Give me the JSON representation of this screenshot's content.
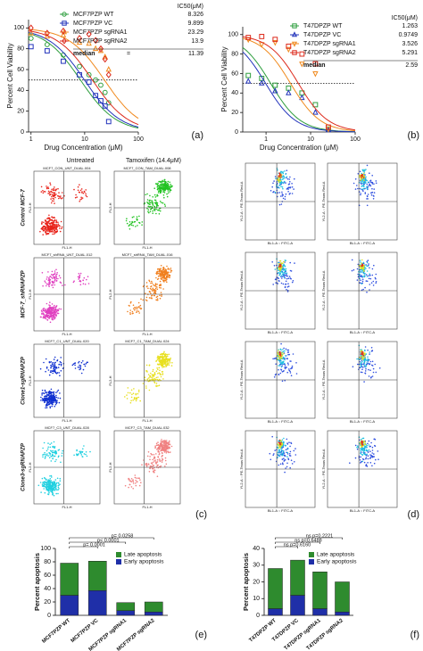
{
  "chart_data": [
    {
      "type": "scatter",
      "panel_label": "(a)",
      "xscale": "log",
      "xlim": [
        0.9,
        100
      ],
      "xticks": [
        1,
        10,
        100
      ],
      "ylim": [
        0,
        108
      ],
      "yticks": [
        0,
        20,
        40,
        60,
        80,
        100
      ],
      "xlabel": "Drug Concentration (μM)",
      "ylabel": "Percent Cell Viability",
      "reference_line": 50,
      "ic50_header": "IC50(μM)",
      "median_label": "median",
      "median_sign": "=",
      "median": 11.39,
      "x": [
        1,
        2,
        4,
        8,
        12,
        16,
        20,
        24,
        28
      ],
      "series": [
        {
          "name": "MCF7PZP WT",
          "color": "#2e9e3e",
          "marker": "circle",
          "ic50": 8.326,
          "values": [
            90,
            84,
            74,
            63,
            55,
            50,
            45,
            38,
            28
          ]
        },
        {
          "name": "MCF7PZP VC",
          "color": "#2233bb",
          "marker": "square",
          "ic50": 9.899,
          "values": [
            82,
            78,
            68,
            55,
            48,
            35,
            30,
            25,
            10
          ]
        },
        {
          "name": "MCF7PZP sgRNA1",
          "color": "#f08a1e",
          "marker": "triangle",
          "ic50": 23.29,
          "values": [
            95,
            92,
            93,
            86,
            85,
            80,
            78,
            72,
            60
          ]
        },
        {
          "name": "MCF7PZP sgRNA2",
          "color": "#dd2a1c",
          "marker": "diamond",
          "ic50": 13.9,
          "values": [
            100,
            95,
            97,
            90,
            94,
            88,
            80,
            70,
            55
          ]
        }
      ]
    },
    {
      "type": "scatter",
      "panel_label": "(b)",
      "xscale": "log",
      "xlim": [
        0.3,
        100
      ],
      "xticks": [
        1,
        10,
        100
      ],
      "ylim": [
        0,
        108
      ],
      "yticks": [
        0,
        20,
        40,
        60,
        80,
        100
      ],
      "xlabel": "Drug Concentration (μM)",
      "ylabel": "Percent Cell Viability",
      "reference_line": 50,
      "ic50_header": "IC50(μM)",
      "median_label": "median",
      "median": 2.59,
      "x": [
        0.4,
        0.8,
        1.6,
        3.2,
        6.4,
        12.8,
        25
      ],
      "series": [
        {
          "name": "T47DPZP WT",
          "color": "#2e9e3e",
          "marker": "square",
          "ic50": 1.263,
          "values": [
            58,
            55,
            48,
            45,
            40,
            28,
            3
          ]
        },
        {
          "name": "T47DPZP VC",
          "color": "#2233bb",
          "marker": "triangle",
          "ic50": 0.9749,
          "values": [
            52,
            50,
            42,
            40,
            35,
            20,
            2
          ]
        },
        {
          "name": "T47DPZP sgRNA1",
          "color": "#f08a1e",
          "marker": "triangle-down",
          "ic50": 3.526,
          "values": [
            95,
            90,
            92,
            85,
            70,
            60,
            3
          ]
        },
        {
          "name": "T47DPZP sgRNA2",
          "color": "#dd2a1c",
          "marker": "square",
          "ic50": 5.291,
          "values": [
            97,
            98,
            95,
            88,
            80,
            70,
            5
          ]
        }
      ]
    },
    {
      "type": "bar",
      "stacked": true,
      "panel_label": "(e)",
      "ylim": [
        0,
        100
      ],
      "yticks": [
        0,
        20,
        40,
        60,
        80,
        100
      ],
      "ylabel": "Percent apoptosis",
      "categories": [
        "MCF7PZP WT",
        "MCF7PZP VC",
        "MCF7PZP sgRNA1",
        "MCF7PZP sgRNA2"
      ],
      "annotations": [
        "p= 0.0258",
        "p< 0.0001",
        "p= 0.0001"
      ],
      "series": [
        {
          "name": "Early apoptosis",
          "color": "#1f2fa8",
          "values": [
            30,
            37,
            7,
            5
          ]
        },
        {
          "name": "Late apoptosis",
          "color": "#2e8b2e",
          "values": [
            48,
            44,
            12,
            15
          ]
        }
      ]
    },
    {
      "type": "bar",
      "stacked": true,
      "panel_label": "(f)",
      "ylim": [
        0,
        40
      ],
      "yticks": [
        0,
        10,
        20,
        30,
        40
      ],
      "ylabel": "Percent apoptosis",
      "categories": [
        "T47DPZP WT",
        "T47DPZP VC",
        "T47DPZP sgRNA1",
        "T47DPZP sgRNA2"
      ],
      "annotations": [
        "ns p=0.2221",
        "ns p=0.6488",
        "ns p=0.6160"
      ],
      "series": [
        {
          "name": "Early apoptosis",
          "color": "#1f2fa8",
          "values": [
            4,
            12,
            4,
            2
          ]
        },
        {
          "name": "Late apoptosis",
          "color": "#2e8b2e",
          "values": [
            24,
            21,
            22,
            18
          ]
        }
      ]
    }
  ],
  "flow_c": {
    "panel_label": "(c)",
    "column_headers": [
      "Untreated",
      "Tamoxifen (14.4μM)"
    ],
    "row_labels": [
      "Control MCF-7",
      "MCF-7_shRNAPZP",
      "Clone1-sgRNAPZP",
      "Clone3-sgRNAPZP"
    ],
    "sample_names": [
      "MCF7_CON_UNT_DUAL.004",
      "MCF7_CON_TAM_DUAL.008",
      "MCF7_shRNA_UNT_DUAL.012",
      "MCF7_shRNA_TAM_DUAL.016",
      "MCF7_C1_UNT_DUAL.020",
      "MCF7_C1_TAM_DUAL.024",
      "MCF7_C3_UNT_DUAL.028",
      "MCF7_C3_TAM_DUAL.032"
    ],
    "x_axis_label": "FL1-H",
    "y_axis_label": "FL2-H"
  },
  "flow_d": {
    "panel_label": "(d)",
    "x_axis_label": "BL1-A :: FITC-A",
    "y_axis_label": "YL2-A :: PE-Texas Red-A"
  }
}
